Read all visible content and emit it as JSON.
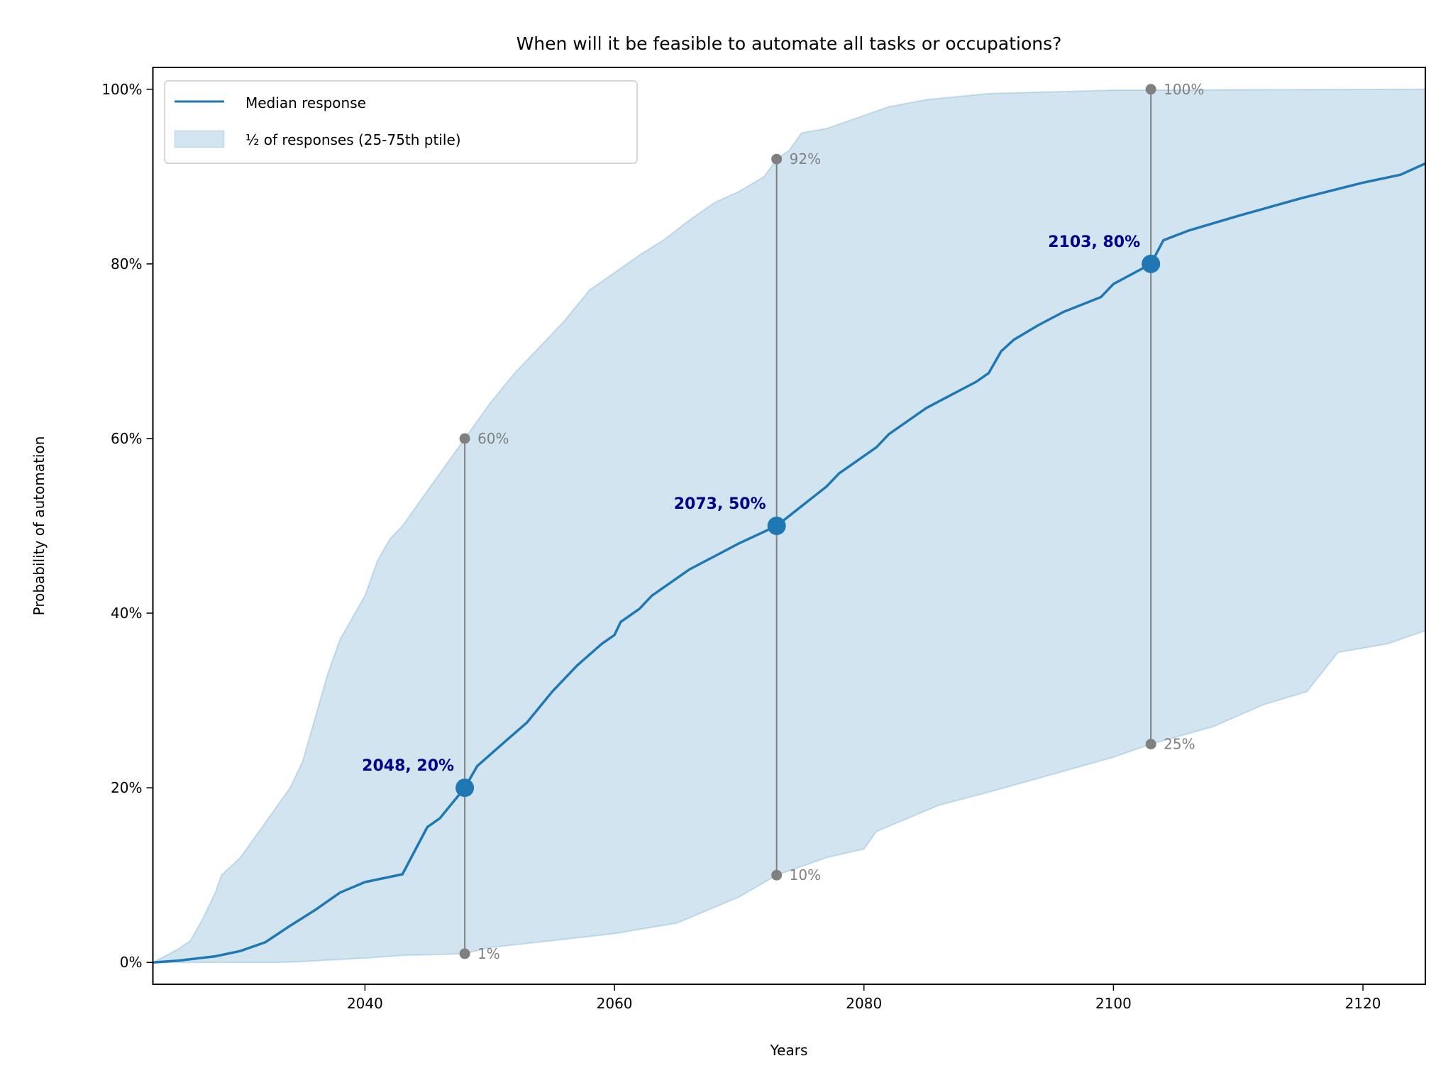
{
  "chart_data": {
    "type": "line",
    "title": "When will it be feasible to automate all tasks or occupations?",
    "xlabel": "Years",
    "ylabel": "Probability of automation",
    "xlim": [
      2023,
      2125
    ],
    "ylim": [
      -2.5,
      102.5
    ],
    "xticks": [
      2040,
      2060,
      2080,
      2100,
      2120
    ],
    "xtick_labels": [
      "2040",
      "2060",
      "2080",
      "2100",
      "2120"
    ],
    "yticks": [
      0,
      20,
      40,
      60,
      80,
      100
    ],
    "ytick_labels": [
      "0%",
      "20%",
      "40%",
      "60%",
      "80%",
      "100%"
    ],
    "grid": false,
    "legend": {
      "placement": "top-left",
      "entries": [
        "Median response",
        "½ of responses (25-75th ptile)"
      ]
    },
    "colors": {
      "median": "#1f77b4",
      "band": "#1f77b4",
      "range": "#808080",
      "annotation": "#00008b"
    },
    "series": [
      {
        "name": "Median response",
        "points": [
          [
            2023,
            0
          ],
          [
            2025,
            0.2
          ],
          [
            2028,
            0.7
          ],
          [
            2030,
            1.3
          ],
          [
            2032,
            2.3
          ],
          [
            2034,
            4.2
          ],
          [
            2036,
            6
          ],
          [
            2038,
            8
          ],
          [
            2040,
            9.2
          ],
          [
            2043,
            10.1
          ],
          [
            2045,
            15.5
          ],
          [
            2046,
            16.5
          ],
          [
            2048,
            20
          ],
          [
            2049,
            22.5
          ],
          [
            2051,
            25
          ],
          [
            2053,
            27.5
          ],
          [
            2055,
            31
          ],
          [
            2057,
            34
          ],
          [
            2059,
            36.5
          ],
          [
            2060,
            37.5
          ],
          [
            2060.5,
            39
          ],
          [
            2062,
            40.5
          ],
          [
            2063,
            42
          ],
          [
            2065.5,
            44.5
          ],
          [
            2066,
            45
          ],
          [
            2070,
            48
          ],
          [
            2073,
            50
          ],
          [
            2077,
            54.5
          ],
          [
            2078,
            56
          ],
          [
            2081,
            59
          ],
          [
            2082,
            60.5
          ],
          [
            2085,
            63.5
          ],
          [
            2087,
            65
          ],
          [
            2089,
            66.5
          ],
          [
            2090,
            67.5
          ],
          [
            2091,
            70
          ],
          [
            2092,
            71.3
          ],
          [
            2094,
            73
          ],
          [
            2096,
            74.5
          ],
          [
            2099,
            76.2
          ],
          [
            2100,
            77.7
          ],
          [
            2103,
            80
          ],
          [
            2104,
            82.7
          ],
          [
            2106,
            83.8
          ],
          [
            2110,
            85.5
          ],
          [
            2115,
            87.5
          ],
          [
            2120,
            89.3
          ],
          [
            2123,
            90.2
          ],
          [
            2125,
            91.5
          ]
        ]
      },
      {
        "name": "½ of responses (25-75th ptile)",
        "upper": [
          [
            2023,
            0
          ],
          [
            2025,
            1.5
          ],
          [
            2026,
            2.5
          ],
          [
            2027,
            5
          ],
          [
            2028,
            8
          ],
          [
            2028.5,
            10
          ],
          [
            2030,
            12
          ],
          [
            2032,
            16
          ],
          [
            2034,
            20
          ],
          [
            2035,
            23
          ],
          [
            2036,
            28
          ],
          [
            2037,
            33
          ],
          [
            2038,
            37
          ],
          [
            2040,
            42
          ],
          [
            2041,
            46
          ],
          [
            2042,
            48.5
          ],
          [
            2043,
            50
          ],
          [
            2045,
            54
          ],
          [
            2047,
            58
          ],
          [
            2048,
            60
          ],
          [
            2050,
            64
          ],
          [
            2052,
            67.5
          ],
          [
            2054,
            70.5
          ],
          [
            2056,
            73.5
          ],
          [
            2058,
            77
          ],
          [
            2060,
            79
          ],
          [
            2062,
            81
          ],
          [
            2064,
            82.8
          ],
          [
            2066,
            85
          ],
          [
            2068,
            87
          ],
          [
            2070,
            88.3
          ],
          [
            2072,
            90
          ],
          [
            2073,
            92
          ],
          [
            2074,
            93
          ],
          [
            2075,
            95
          ],
          [
            2077,
            95.5
          ],
          [
            2080,
            97
          ],
          [
            2082,
            98
          ],
          [
            2085,
            98.8
          ],
          [
            2090,
            99.5
          ],
          [
            2100,
            99.9
          ],
          [
            2125,
            100
          ]
        ],
        "lower": [
          [
            2023,
            0
          ],
          [
            2033,
            0
          ],
          [
            2035,
            0.1
          ],
          [
            2040,
            0.5
          ],
          [
            2043,
            0.8
          ],
          [
            2048,
            1
          ],
          [
            2050,
            1.7
          ],
          [
            2055,
            2.5
          ],
          [
            2060,
            3.3
          ],
          [
            2065,
            4.5
          ],
          [
            2070,
            7.5
          ],
          [
            2073,
            10
          ],
          [
            2077,
            12
          ],
          [
            2080,
            13
          ],
          [
            2081,
            15
          ],
          [
            2086,
            18
          ],
          [
            2090,
            19.5
          ],
          [
            2100,
            23.5
          ],
          [
            2103,
            25
          ],
          [
            2108,
            27
          ],
          [
            2112,
            29.5
          ],
          [
            2115.5,
            31
          ],
          [
            2118,
            35.5
          ],
          [
            2122,
            36.5
          ],
          [
            2124,
            37.5
          ],
          [
            2125,
            38
          ]
        ]
      }
    ],
    "annotations": [
      {
        "year": 2048,
        "median": 20,
        "label": "2048, 20%",
        "low": 1,
        "low_label": "1%",
        "high": 60,
        "high_label": "60%"
      },
      {
        "year": 2073,
        "median": 50,
        "label": "2073, 50%",
        "low": 10,
        "low_label": "10%",
        "high": 92,
        "high_label": "92%"
      },
      {
        "year": 2103,
        "median": 80,
        "label": "2103, 80%",
        "low": 25,
        "low_label": "25%",
        "high": 100,
        "high_label": "100%"
      }
    ]
  }
}
